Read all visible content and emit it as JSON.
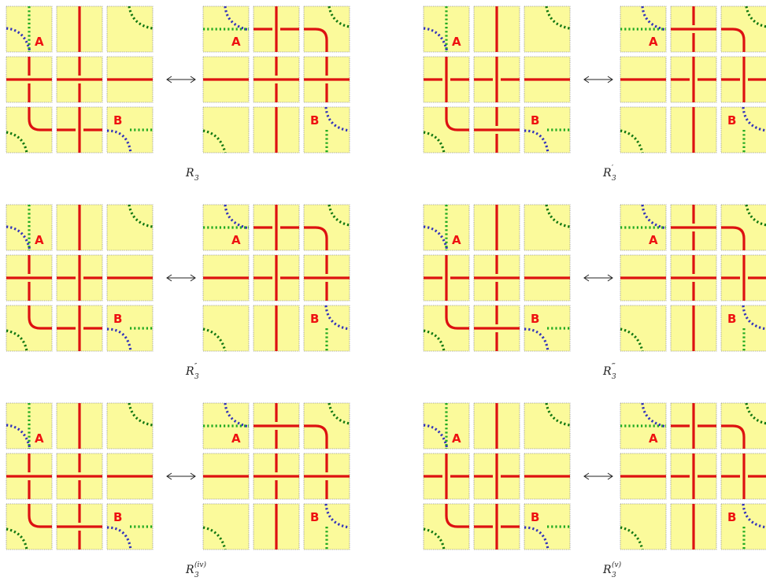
{
  "panels": [
    {
      "label_base": "R",
      "label_sub": "3",
      "label_sup": "",
      "left": [
        "A",
        "H2B",
        "EMPTY",
        "HX",
        "HX",
        "H",
        "BL",
        "HV2",
        "B"
      ],
      "right": [
        "A2",
        "HX2",
        "CR",
        "H",
        "HX",
        "HXR",
        "EMPTY",
        "V",
        "B2"
      ]
    },
    {
      "label_base": "R",
      "label_sub": "3",
      "label_sup": "′",
      "left": [
        "A",
        "V",
        "EMPTY",
        "HX2",
        "HX2",
        "H",
        "BL",
        "HXB",
        "B"
      ],
      "right": [
        "A2",
        "HXT",
        "CR",
        "H",
        "HX2",
        "HX2R",
        "EMPTY",
        "V",
        "B2"
      ]
    },
    {
      "label_base": "R",
      "label_sub": "3",
      "label_sup": "″",
      "left": [
        "A",
        "V",
        "EMPTY",
        "HX",
        "HX2",
        "H",
        "BL",
        "HV2",
        "B"
      ],
      "right": [
        "A2",
        "HX2",
        "CR",
        "H",
        "HX2",
        "HXR",
        "EMPTY",
        "V",
        "B2"
      ]
    },
    {
      "label_base": "R",
      "label_sub": "3",
      "label_sup": "‴",
      "left": [
        "A",
        "V",
        "EMPTY",
        "HX2",
        "HX",
        "H",
        "BL",
        "HXB",
        "B"
      ],
      "right": [
        "A2",
        "HXT",
        "CR",
        "H",
        "HX",
        "HX2R",
        "EMPTY",
        "V",
        "B2"
      ]
    },
    {
      "label_base": "R",
      "label_sub": "3",
      "label_sup": "(iv)",
      "left": [
        "A",
        "V",
        "EMPTY",
        "HX",
        "HX",
        "H",
        "BL",
        "HXB",
        "B"
      ],
      "right": [
        "A2",
        "HXT",
        "CR",
        "H",
        "HX",
        "HXR",
        "EMPTY",
        "V",
        "B2"
      ]
    },
    {
      "label_base": "R",
      "label_sub": "3",
      "label_sup": "(v)",
      "left": [
        "A",
        "V",
        "EMPTY",
        "HX2",
        "HX2",
        "H",
        "BL",
        "HV2",
        "B"
      ],
      "right": [
        "A2",
        "HX2",
        "CR",
        "H",
        "HX2",
        "HX2R",
        "EMPTY",
        "V",
        "B2"
      ]
    }
  ],
  "marker_a": "A",
  "marker_b": "B",
  "arrow_symbol": "⟷"
}
